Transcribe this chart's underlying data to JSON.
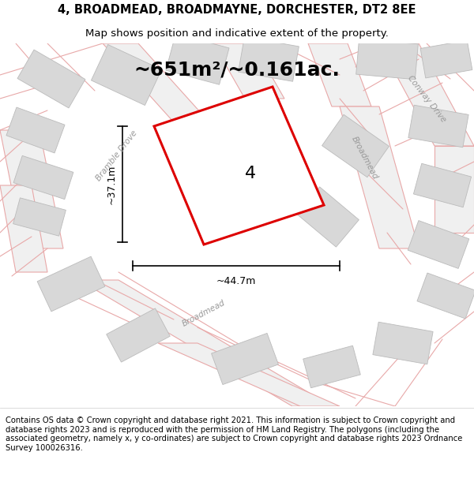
{
  "title_line1": "4, BROADMEAD, BROADMAYNE, DORCHESTER, DT2 8EE",
  "title_line2": "Map shows position and indicative extent of the property.",
  "area_text": "~651m²/~0.161ac.",
  "label_4": "4",
  "dim_width": "~44.7m",
  "dim_height": "~37.1m",
  "footer_text": "Contains OS data © Crown copyright and database right 2021. This information is subject to Crown copyright and database rights 2023 and is reproduced with the permission of HM Land Registry. The polygons (including the associated geometry, namely x, y co-ordinates) are subject to Crown copyright and database rights 2023 Ordnance Survey 100026316.",
  "bg_color": "#ffffff",
  "map_bg": "#f8f8f8",
  "road_fill": "#f0f0f0",
  "building_color": "#d8d8d8",
  "building_edge": "#bbbbbb",
  "plot_edge_color": "#dd0000",
  "road_line_color": "#e8a8a8",
  "title_fontsize": 10.5,
  "subtitle_fontsize": 9.5,
  "area_fontsize": 18,
  "label_fontsize": 16,
  "street_fontsize": 7.5,
  "footer_fontsize": 7.2,
  "dim_fontsize": 9
}
